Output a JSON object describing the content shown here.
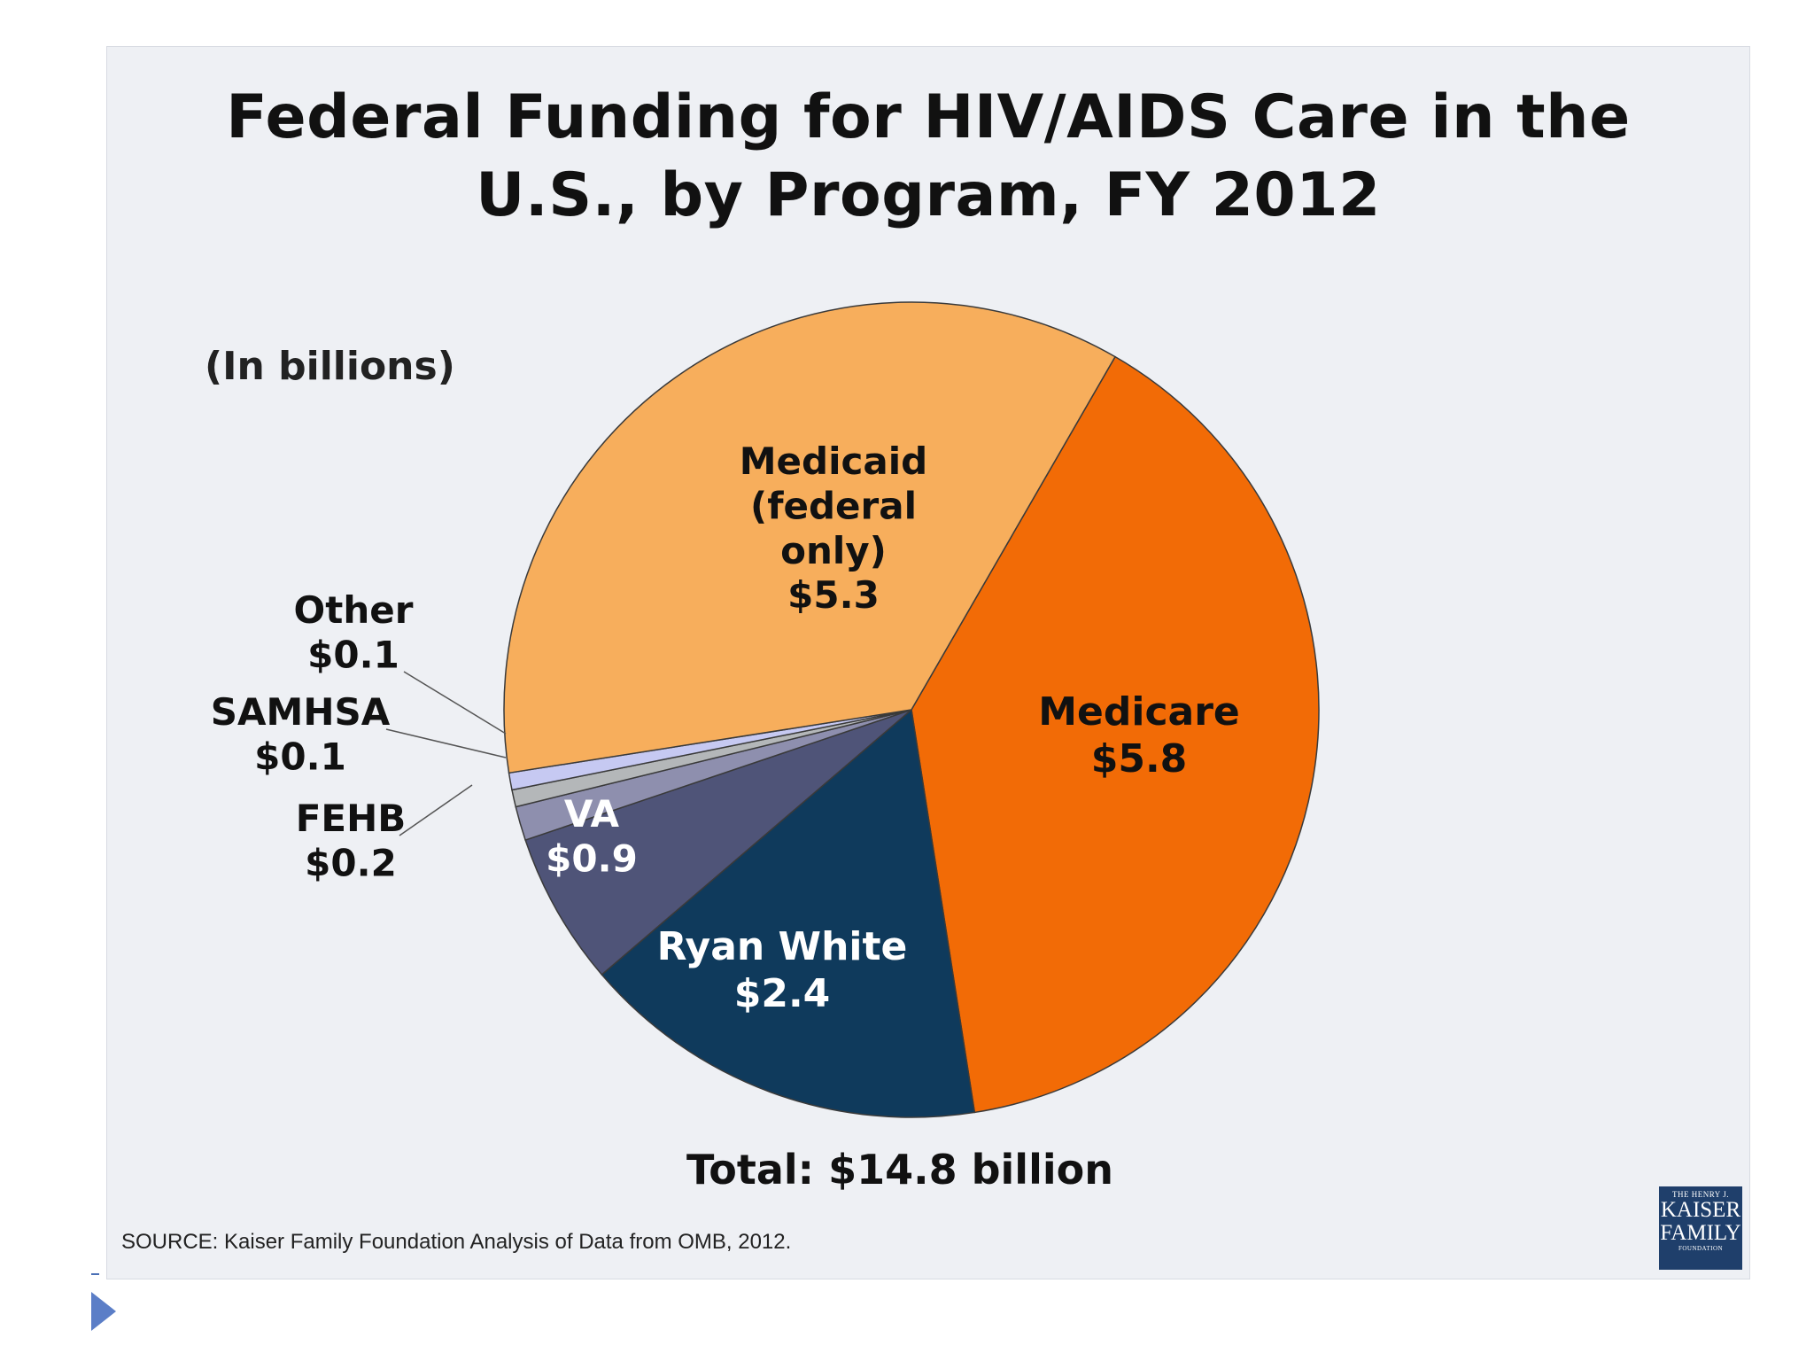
{
  "chart_data": {
    "type": "pie",
    "title_line1": "Federal Funding for HIV/AIDS Care in the",
    "title_line2": "U.S., by Program, FY 2012",
    "units": "(In billions)",
    "total_label": "Total: $14.8 billion",
    "source": "SOURCE: Kaiser Family Foundation Analysis of Data from OMB, 2012.",
    "slices": [
      {
        "key": "medicare",
        "name": "Medicare",
        "value": 5.8,
        "value_label": "$5.8",
        "color": "#f26b06",
        "label_color": "#111111",
        "label_lines": [
          "Medicare"
        ]
      },
      {
        "key": "ryan-white",
        "name": "Ryan White",
        "value": 2.4,
        "value_label": "$2.4",
        "color": "#0f3a5c",
        "label_color": "#ffffff",
        "label_lines": [
          "Ryan White"
        ]
      },
      {
        "key": "va",
        "name": "VA",
        "value": 0.9,
        "value_label": "$0.9",
        "color": "#4f5478",
        "label_color": "#ffffff",
        "label_lines": [
          "VA"
        ]
      },
      {
        "key": "fehb",
        "name": "FEHB",
        "value": 0.2,
        "value_label": "$0.2",
        "color": "#8e8fae",
        "label_color": "#111111",
        "label_lines": [
          "FEHB"
        ]
      },
      {
        "key": "samhsa",
        "name": "SAMHSA",
        "value": 0.1,
        "value_label": "$0.1",
        "color": "#b4b7b9",
        "label_color": "#111111",
        "label_lines": [
          "SAMHSA"
        ]
      },
      {
        "key": "other",
        "name": "Other",
        "value": 0.1,
        "value_label": "$0.1",
        "color": "#c6c9f2",
        "label_color": "#111111",
        "label_lines": [
          "Other"
        ]
      },
      {
        "key": "medicaid",
        "name": "Medicaid (federal only)",
        "value": 5.3,
        "value_label": "$5.3",
        "color": "#f7ae5c",
        "label_color": "#111111",
        "label_lines": [
          "Medicaid",
          "(federal",
          "only)"
        ]
      }
    ]
  },
  "logo": {
    "line1": "THE HENRY J.",
    "line2": "KAISER",
    "line3": "FAMILY",
    "line4": "FOUNDATION"
  }
}
